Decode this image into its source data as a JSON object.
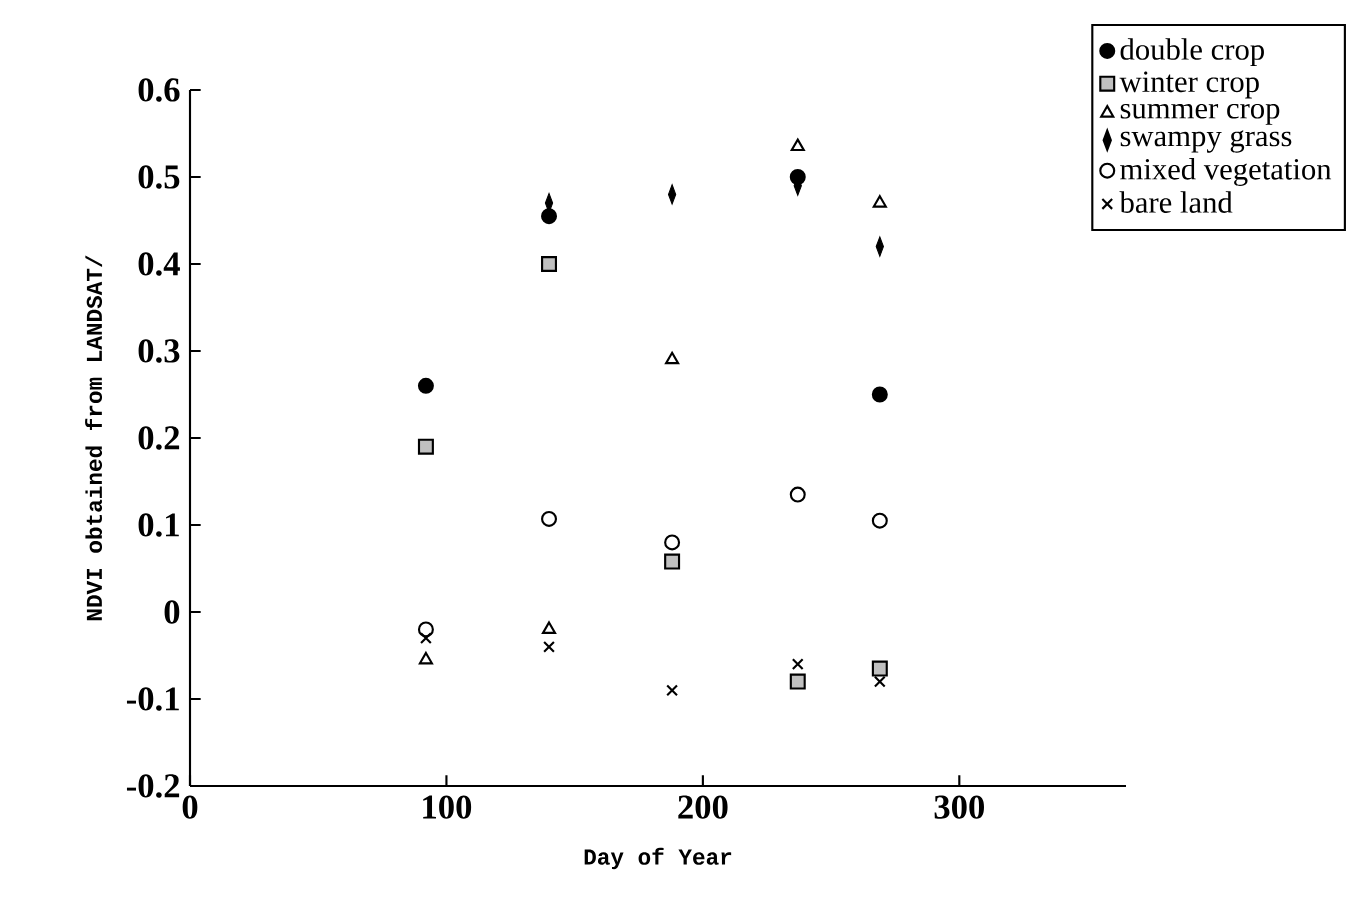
{
  "chart_data": {
    "type": "scatter",
    "xlabel": "Day of Year",
    "ylabel": "NDVI obtained from LANDSAT/",
    "x": [
      92,
      140,
      188,
      237,
      269
    ],
    "series": [
      {
        "name": "double crop",
        "color": "#000000",
        "marker": "circle",
        "values": [
          0.26,
          0.455,
          null,
          0.5,
          0.25
        ]
      },
      {
        "name": "winter crop",
        "color": "#c0c0c0",
        "marker": "square",
        "values": [
          0.19,
          0.4,
          0.058,
          -0.08,
          -0.065
        ]
      },
      {
        "name": "summer crop",
        "color": "#000000",
        "marker": "triangle",
        "values": [
          -0.055,
          -0.02,
          0.29,
          0.535,
          0.47
        ]
      },
      {
        "name": "swampy grass",
        "color": "#000000",
        "marker": "diamond",
        "values": [
          null,
          0.47,
          0.48,
          0.49,
          0.42
        ]
      },
      {
        "name": "mixed vegetation",
        "color": "#000000",
        "marker": "open circle",
        "values": [
          -0.02,
          0.107,
          0.08,
          0.135,
          0.105
        ]
      },
      {
        "name": "bare land",
        "color": "#000000",
        "marker": "cross",
        "values": [
          -0.03,
          -0.04,
          -0.09,
          -0.06,
          -0.08
        ]
      }
    ],
    "xlim": [
      0,
      365
    ],
    "ylim": [
      -0.2,
      0.6
    ],
    "xticks": [
      0,
      100,
      200,
      300
    ],
    "yticks": [
      -0.2,
      -0.1,
      0,
      0.1,
      0.2,
      0.3,
      0.4,
      0.5,
      0.6
    ],
    "grid": false,
    "legend": "top right"
  }
}
